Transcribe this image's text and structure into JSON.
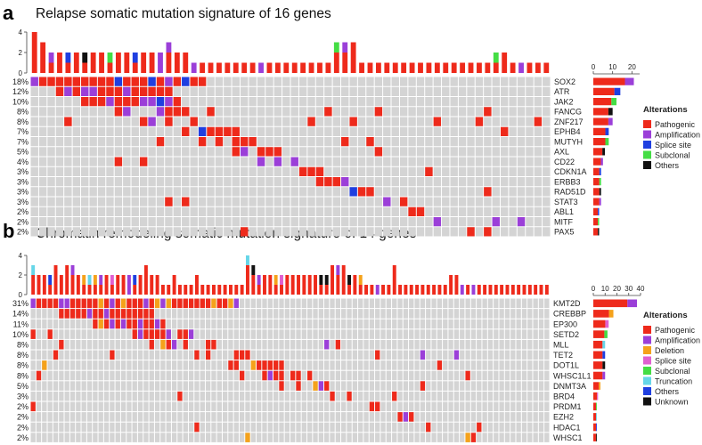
{
  "panels": [
    {
      "letter": "a",
      "title": "Relapse somatic mutation signature of 16 genes"
    },
    {
      "letter": "b",
      "title": "Chromatin remodeling somatic mutation signature of 14 genes"
    }
  ],
  "chart_data": [
    {
      "type": "heatmap",
      "title": "Relapse somatic mutation signature of 16 genes",
      "n_samples": 62,
      "top_axis": {
        "ticks": [
          "0",
          "2",
          "4"
        ],
        "max": 4
      },
      "side_axis": {
        "ticks": [
          "0",
          "10",
          "20"
        ],
        "max": 24
      },
      "genes": [
        "SOX2",
        "ATR",
        "JAK2",
        "FANCG",
        "ZNF217",
        "EPHB4",
        "MUTYH",
        "AXL",
        "CD22",
        "CDKN1A",
        "ERBB3",
        "RAD51D",
        "STAT3",
        "ABL1",
        "MITF",
        "PAX5"
      ],
      "percents": [
        "18%",
        "12%",
        "10%",
        "8%",
        "8%",
        "7%",
        "7%",
        "5%",
        "4%",
        "3%",
        "3%",
        "3%",
        "3%",
        "2%",
        "2%",
        "2%"
      ],
      "gene_counts": [
        21,
        14,
        12,
        10,
        10,
        8,
        8,
        6,
        5,
        4,
        4,
        4,
        4,
        3,
        3,
        3
      ],
      "legend_title": "Alterations",
      "alterations": [
        {
          "name": "Pathogenic",
          "color": "#ee2a1b"
        },
        {
          "name": "Amplification",
          "color": "#9b3fd8"
        },
        {
          "name": "Splice site",
          "color": "#1f3fe0"
        },
        {
          "name": "Subclonal",
          "color": "#44dd44"
        },
        {
          "name": "Others",
          "color": "#111111"
        }
      ],
      "top_counts": [
        4,
        3,
        2,
        2,
        2,
        2,
        2,
        2,
        2,
        2,
        2,
        2,
        2,
        2,
        2,
        2,
        3,
        2,
        2,
        1,
        1,
        1,
        1,
        1,
        1,
        1,
        1,
        1,
        1,
        1,
        1,
        1,
        1,
        1,
        1,
        1,
        3,
        3,
        3,
        1,
        1,
        1,
        1,
        1,
        1,
        1,
        1,
        1,
        1,
        1,
        1,
        1,
        1,
        1,
        1,
        2,
        2,
        1,
        1,
        1,
        1,
        1
      ]
    },
    {
      "type": "heatmap",
      "title": "Chromatin remodeling somatic mutation signature of 14 genes",
      "n_samples": 92,
      "top_axis": {
        "ticks": [
          "0",
          "2",
          "4"
        ],
        "max": 4
      },
      "side_axis": {
        "ticks": [
          "0",
          "10",
          "20",
          "30",
          "40"
        ],
        "max": 40
      },
      "genes": [
        "KMT2D",
        "CREBBP",
        "EP300",
        "SETD2",
        "MLL",
        "TET2",
        "DOT1L",
        "WHSC1L1",
        "DNMT3A",
        "BRD4",
        "PRDM1",
        "EZH2",
        "HDAC1",
        "WHSC1"
      ],
      "percents": [
        "31%",
        "14%",
        "11%",
        "10%",
        "8%",
        "8%",
        "8%",
        "8%",
        "5%",
        "3%",
        "2%",
        "2%",
        "2%",
        "2%"
      ],
      "gene_counts": [
        37,
        17,
        13,
        12,
        10,
        10,
        10,
        10,
        6,
        4,
        3,
        3,
        3,
        3
      ],
      "legend_title": "Alterations",
      "alterations": [
        {
          "name": "Pathogenic",
          "color": "#ee2a1b"
        },
        {
          "name": "Amplification",
          "color": "#9b3fd8"
        },
        {
          "name": "Deletion",
          "color": "#f5a21b"
        },
        {
          "name": "Splice site",
          "color": "#e060d0"
        },
        {
          "name": "Subclonal",
          "color": "#44dd44"
        },
        {
          "name": "Truncation",
          "color": "#66d6e8"
        },
        {
          "name": "Others",
          "color": "#1f3fe0"
        },
        {
          "name": "Unknown",
          "color": "#111111"
        }
      ],
      "top_counts": [
        3,
        2,
        2,
        2,
        3,
        2,
        3,
        3,
        2,
        2,
        2,
        2,
        2,
        2,
        2,
        2,
        2,
        2,
        2,
        2,
        3,
        2,
        2,
        1,
        1,
        2,
        1,
        1,
        1,
        2,
        1,
        1,
        1,
        1,
        1,
        1,
        1,
        1,
        4,
        3,
        2,
        2,
        2,
        2,
        2,
        2,
        2,
        2,
        2,
        2,
        2,
        2,
        2,
        3,
        3,
        3,
        2,
        2,
        2,
        1,
        1,
        1,
        1,
        1,
        3,
        1,
        1,
        1,
        1,
        1,
        1,
        1,
        1,
        1,
        2,
        2,
        1,
        1,
        1,
        1,
        1,
        1,
        1,
        1,
        1,
        1,
        1,
        1,
        1,
        1,
        1,
        1
      ]
    }
  ]
}
